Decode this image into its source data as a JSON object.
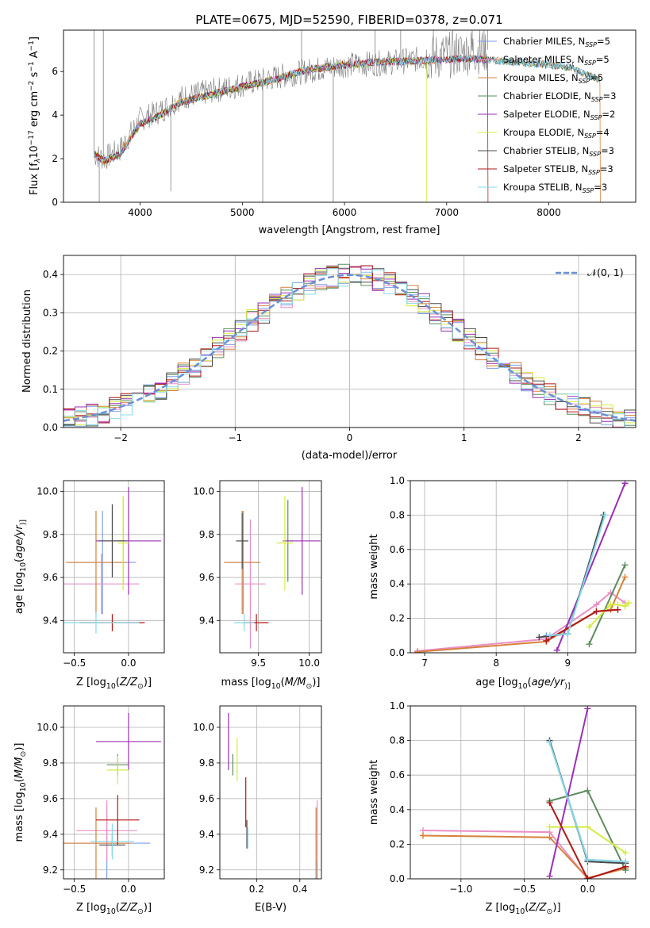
{
  "title": "PLATE=0675, MJD=52590, FIBERID=0378, z=0.071",
  "colors": {
    "Chabrier MILES": "#7d9fe8",
    "Salpeter MILES": "#e98fc6",
    "Kroupa MILES": "#d6813a",
    "Chabrier ELODIE": "#5d8c5d",
    "Salpeter ELODIE": "#9a2fb7",
    "Kroupa ELODIE": "#d4ec3e",
    "Chabrier STELIB": "#4a4a4a",
    "Salpeter STELIB": "#b01818",
    "Kroupa STELIB": "#86d9e8",
    "data": "#808080",
    "normal": "#6a8fd8"
  },
  "chart_data": [
    {
      "type": "line",
      "id": "spectrum",
      "title": "PLATE=0675, MJD=52590, FIBERID=0378, z=0.071",
      "xlabel": "wavelength [Angstrom, rest frame]",
      "ylabel_parts": [
        "Flux [f",
        "λ",
        "10",
        "−17",
        " erg cm",
        "−2",
        " s",
        "−1",
        " A",
        "−1",
        "]"
      ],
      "xlim": [
        3250,
        8850
      ],
      "ylim": [
        0,
        7.9
      ],
      "xticks": [
        4000,
        5000,
        6000,
        7000,
        8000
      ],
      "yticks": [
        0,
        2,
        4,
        6
      ],
      "legend_location": "right",
      "legend": [
        {
          "name": "Chabrier MILES",
          "n": "5"
        },
        {
          "name": "Salpeter MILES",
          "n": "5"
        },
        {
          "name": "Kroupa MILES",
          "n": "5"
        },
        {
          "name": "Chabrier ELODIE",
          "n": "3"
        },
        {
          "name": "Salpeter ELODIE",
          "n": "2"
        },
        {
          "name": "Kroupa ELODIE",
          "n": "4"
        },
        {
          "name": "Chabrier STELIB",
          "n": "3"
        },
        {
          "name": "Salpeter STELIB",
          "n": "3"
        },
        {
          "name": "Kroupa STELIB",
          "n": "3"
        }
      ],
      "model_trend": {
        "x": [
          3550,
          3650,
          3800,
          4000,
          4200,
          4400,
          4700,
          5000,
          5300,
          5600,
          6000,
          6400,
          6800,
          7200,
          7400,
          7600,
          7900,
          8200,
          8500
        ],
        "y": [
          2.2,
          1.9,
          2.2,
          3.6,
          4.0,
          4.6,
          4.95,
          5.3,
          5.6,
          6.05,
          6.3,
          6.45,
          6.5,
          6.6,
          6.55,
          6.45,
          6.35,
          6.2,
          5.6
        ]
      },
      "data_trend": {
        "x": [
          3550,
          3650,
          3800,
          4000,
          4200,
          4400,
          4700,
          5000,
          5300,
          5600,
          6000,
          6400,
          6800,
          7200,
          7400
        ],
        "y": [
          2.2,
          2.0,
          2.4,
          3.8,
          4.2,
          4.8,
          5.1,
          5.4,
          5.7,
          6.0,
          6.3,
          6.4,
          6.6,
          6.9,
          7.0
        ]
      }
    },
    {
      "type": "histogram",
      "id": "residuals",
      "xlabel": "(data-model)/error",
      "ylabel": "Normed distribution",
      "xlim": [
        -2.5,
        2.5
      ],
      "ylim": [
        0,
        0.45
      ],
      "xticks": [
        -2,
        -1,
        0,
        1,
        2
      ],
      "yticks": [
        0.0,
        0.1,
        0.2,
        0.3,
        0.4
      ],
      "legend_location": "top-right",
      "normal_label": "𝒩(0, 1)",
      "bin_width": 0.1,
      "grid": true
    },
    {
      "type": "scatter",
      "id": "age-vs-z",
      "xlabel_parts": [
        "Z [log",
        "10",
        "(",
        "Z/Z",
        "⊙",
        ")]"
      ],
      "ylabel_parts": [
        "age  [log",
        "10",
        "(",
        "age/yr",
        ")]"
      ],
      "xlim": [
        -0.6,
        0.33
      ],
      "ylim": [
        9.25,
        10.05
      ],
      "xticks": [
        -0.5,
        0.0
      ],
      "yticks": [
        9.4,
        9.6,
        9.8,
        10.0
      ],
      "points": [
        {
          "model": "Chabrier MILES",
          "x": -0.24,
          "xerr": 0.31,
          "y": 9.67,
          "yerr": 0.24
        },
        {
          "model": "Salpeter MILES",
          "x": -0.25,
          "xerr": 0.35,
          "y": 9.57,
          "yerr": 0.14
        },
        {
          "model": "Kroupa MILES",
          "x": -0.3,
          "xerr": 0.28,
          "y": 9.67,
          "yerr": 0.24
        },
        {
          "model": "Chabrier ELODIE",
          "x": -0.05,
          "xerr": 0.04,
          "y": 9.77,
          "yerr": 0.2
        },
        {
          "model": "Salpeter ELODIE",
          "x": 0.0,
          "xerr": 0.3,
          "y": 9.77,
          "yerr": 0.25
        },
        {
          "model": "Kroupa ELODIE",
          "x": -0.05,
          "xerr": 0.05,
          "y": 9.76,
          "yerr": 0.22
        },
        {
          "model": "Chabrier STELIB",
          "x": -0.15,
          "xerr": 0.12,
          "y": 9.77,
          "yerr": 0.17
        },
        {
          "model": "Salpeter STELIB",
          "x": -0.15,
          "xerr": 0.3,
          "y": 9.39,
          "yerr": 0.04
        },
        {
          "model": "Kroupa STELIB",
          "x": -0.3,
          "xerr": 0.4,
          "y": 9.39,
          "yerr": 0.05
        }
      ]
    },
    {
      "type": "scatter",
      "id": "age-vs-mass",
      "xlabel_parts": [
        "mass [log",
        "10",
        "(",
        "M/M",
        "⊙",
        ")]"
      ],
      "ylabel_parts": [],
      "xlim": [
        9.12,
        10.12
      ],
      "ylim": [
        9.25,
        10.05
      ],
      "xticks": [
        9.5,
        10.0
      ],
      "yticks": [
        9.4,
        9.6,
        9.8,
        10.0
      ],
      "points": [
        {
          "model": "Chabrier MILES",
          "x": 9.35,
          "xerr": 0.16,
          "y": 9.67,
          "yerr": 0.24
        },
        {
          "model": "Salpeter MILES",
          "x": 9.42,
          "xerr": 0.15,
          "y": 9.57,
          "yerr": 0.3
        },
        {
          "model": "Kroupa MILES",
          "x": 9.34,
          "xerr": 0.18,
          "y": 9.67,
          "yerr": 0.24
        },
        {
          "model": "Chabrier ELODIE",
          "x": 9.79,
          "xerr": 0.05,
          "y": 9.77,
          "yerr": 0.19
        },
        {
          "model": "Salpeter ELODIE",
          "x": 9.93,
          "xerr": 0.18,
          "y": 9.77,
          "yerr": 0.25
        },
        {
          "model": "Kroupa ELODIE",
          "x": 9.76,
          "xerr": 0.08,
          "y": 9.76,
          "yerr": 0.22
        },
        {
          "model": "Chabrier STELIB",
          "x": 9.34,
          "xerr": 0.06,
          "y": 9.77,
          "yerr": 0.13
        },
        {
          "model": "Salpeter STELIB",
          "x": 9.48,
          "xerr": 0.12,
          "y": 9.39,
          "yerr": 0.04
        },
        {
          "model": "Kroupa STELIB",
          "x": 9.36,
          "xerr": 0.1,
          "y": 9.39,
          "yerr": 0.04
        }
      ]
    },
    {
      "type": "line",
      "id": "weight-vs-age",
      "xlabel_parts": [
        "age  [log",
        "10",
        "(",
        "age/yr",
        ")]"
      ],
      "ylabel": "mass weight",
      "xlim": [
        6.8,
        9.95
      ],
      "ylim": [
        0,
        1.0
      ],
      "xticks": [
        7,
        8,
        9
      ],
      "yticks": [
        0.0,
        0.2,
        0.4,
        0.6,
        0.8,
        1.0
      ],
      "series": [
        {
          "model": "Chabrier MILES",
          "x": [
            8.7,
            9.0,
            9.5
          ],
          "y": [
            0.1,
            0.11,
            0.8
          ]
        },
        {
          "model": "Salpeter MILES",
          "x": [
            6.9,
            8.7,
            9.4,
            9.6,
            9.8
          ],
          "y": [
            0.01,
            0.08,
            0.28,
            0.35,
            0.29
          ]
        },
        {
          "model": "Kroupa MILES",
          "x": [
            6.9,
            8.7,
            9.4,
            9.6,
            9.8
          ],
          "y": [
            0.005,
            0.065,
            0.24,
            0.25,
            0.44
          ]
        },
        {
          "model": "Chabrier ELODIE",
          "x": [
            9.3,
            9.8
          ],
          "y": [
            0.05,
            0.51
          ]
        },
        {
          "model": "Salpeter ELODIE",
          "x": [
            8.85,
            9.8
          ],
          "y": [
            0.015,
            0.985
          ]
        },
        {
          "model": "Kroupa ELODIE",
          "x": [
            9.3,
            9.6,
            9.7,
            9.8,
            9.85
          ],
          "y": [
            0.15,
            0.28,
            0.28,
            0.27,
            0.29
          ]
        },
        {
          "model": "Chabrier STELIB",
          "x": [
            8.6,
            9.0,
            9.5
          ],
          "y": [
            0.09,
            0.11,
            0.8
          ]
        },
        {
          "model": "Salpeter STELIB",
          "x": [
            8.7,
            9.4,
            9.7
          ],
          "y": [
            0.07,
            0.24,
            0.25
          ]
        },
        {
          "model": "Kroupa STELIB",
          "x": [
            8.75,
            9.0,
            9.52
          ],
          "y": [
            0.1,
            0.11,
            0.8
          ]
        }
      ]
    },
    {
      "type": "scatter",
      "id": "mass-vs-z",
      "xlabel_parts": [
        "Z [log",
        "10",
        "(",
        "Z/Z",
        "⊙",
        ")]"
      ],
      "ylabel_parts": [
        "mass [log",
        "10",
        "(",
        "M/M",
        "⊙",
        ")]"
      ],
      "xlim": [
        -0.6,
        0.33
      ],
      "ylim": [
        9.15,
        10.12
      ],
      "xticks": [
        -0.5,
        0.0
      ],
      "yticks": [
        9.2,
        9.4,
        9.6,
        9.8,
        10.0
      ],
      "points": [
        {
          "model": "Chabrier MILES",
          "x": -0.2,
          "xerr": 0.4,
          "y": 9.35,
          "yerr": 0.2
        },
        {
          "model": "Salpeter MILES",
          "x": -0.2,
          "xerr": 0.28,
          "y": 9.42,
          "yerr": 0.17
        },
        {
          "model": "Kroupa MILES",
          "x": -0.3,
          "xerr": 0.32,
          "y": 9.35,
          "yerr": 0.2
        },
        {
          "model": "Chabrier ELODIE",
          "x": -0.1,
          "xerr": 0.1,
          "y": 9.79,
          "yerr": 0.06
        },
        {
          "model": "Salpeter ELODIE",
          "x": 0.0,
          "xerr": 0.3,
          "y": 9.92,
          "yerr": 0.16
        },
        {
          "model": "Kroupa ELODIE",
          "x": -0.1,
          "xerr": 0.1,
          "y": 9.76,
          "yerr": 0.08
        },
        {
          "model": "Chabrier STELIB",
          "x": -0.15,
          "xerr": 0.12,
          "y": 9.34,
          "yerr": 0.06
        },
        {
          "model": "Salpeter STELIB",
          "x": -0.1,
          "xerr": 0.2,
          "y": 9.48,
          "yerr": 0.14
        },
        {
          "model": "Kroupa STELIB",
          "x": -0.15,
          "xerr": 0.2,
          "y": 9.36,
          "yerr": 0.1
        }
      ]
    },
    {
      "type": "scatter",
      "id": "mass-vs-ebv",
      "xlabel": "E(B-V)",
      "ylabel_parts": [],
      "xlim": [
        0.03,
        0.5
      ],
      "ylim": [
        9.15,
        10.12
      ],
      "xticks": [
        0.2,
        0.4
      ],
      "yticks": [
        9.2,
        9.4,
        9.6,
        9.8,
        10.0
      ],
      "points": [
        {
          "model": "Chabrier MILES",
          "x": 0.48,
          "xerr": 0,
          "y": 9.35,
          "yerr": 0.2
        },
        {
          "model": "Salpeter MILES",
          "x": 0.48,
          "xerr": 0,
          "y": 9.42,
          "yerr": 0.17
        },
        {
          "model": "Kroupa MILES",
          "x": 0.475,
          "xerr": 0,
          "y": 9.35,
          "yerr": 0.2
        },
        {
          "model": "Chabrier ELODIE",
          "x": 0.09,
          "xerr": 0,
          "y": 9.79,
          "yerr": 0.06
        },
        {
          "model": "Salpeter ELODIE",
          "x": 0.07,
          "xerr": 0,
          "y": 9.92,
          "yerr": 0.16
        },
        {
          "model": "Kroupa ELODIE",
          "x": 0.11,
          "xerr": 0,
          "y": 9.82,
          "yerr": 0.12
        },
        {
          "model": "Chabrier STELIB",
          "x": 0.155,
          "xerr": 0,
          "y": 9.4,
          "yerr": 0.08
        },
        {
          "model": "Salpeter STELIB",
          "x": 0.15,
          "xerr": 0,
          "y": 9.58,
          "yerr": 0.14
        },
        {
          "model": "Kroupa STELIB",
          "x": 0.16,
          "xerr": 0,
          "y": 9.38,
          "yerr": 0.06
        }
      ]
    },
    {
      "type": "line",
      "id": "weight-vs-z",
      "xlabel_parts": [
        "Z [log",
        "10",
        "(",
        "Z/Z",
        "⊙",
        ")]"
      ],
      "ylabel": "mass weight",
      "xlim": [
        -1.4,
        0.38
      ],
      "ylim": [
        0,
        1.0
      ],
      "xticks": [
        -1.0,
        -0.5,
        0.0
      ],
      "yticks": [
        0.0,
        0.2,
        0.4,
        0.6,
        0.8,
        1.0
      ],
      "tick_labels_x": [
        "−1.0",
        "−0.5",
        "0.0"
      ],
      "series": [
        {
          "model": "Chabrier MILES",
          "x": [
            -0.3,
            0.0,
            0.3
          ],
          "y": [
            0.8,
            0.11,
            0.1
          ]
        },
        {
          "model": "Salpeter MILES",
          "x": [
            -1.3,
            -0.3,
            0.0,
            0.3
          ],
          "y": [
            0.28,
            0.27,
            0.0,
            0.07
          ]
        },
        {
          "model": "Kroupa MILES",
          "x": [
            -1.3,
            -0.3,
            0.0,
            0.3
          ],
          "y": [
            0.25,
            0.24,
            0.005,
            0.06
          ]
        },
        {
          "model": "Chabrier ELODIE",
          "x": [
            -0.3,
            0.0,
            0.3
          ],
          "y": [
            0.45,
            0.51,
            0.05
          ]
        },
        {
          "model": "Salpeter ELODIE",
          "x": [
            -0.3,
            0.0
          ],
          "y": [
            0.015,
            0.985
          ]
        },
        {
          "model": "Kroupa ELODIE",
          "x": [
            -0.3,
            0.0,
            0.3
          ],
          "y": [
            0.3,
            0.3,
            0.15
          ]
        },
        {
          "model": "Chabrier STELIB",
          "x": [
            -0.3,
            0.0,
            0.3
          ],
          "y": [
            0.8,
            0.1,
            0.09
          ]
        },
        {
          "model": "Salpeter STELIB",
          "x": [
            -0.3,
            0.0,
            0.3
          ],
          "y": [
            0.44,
            0.0,
            0.07
          ]
        },
        {
          "model": "Kroupa STELIB",
          "x": [
            -0.3,
            0.0,
            0.3
          ],
          "y": [
            0.79,
            0.11,
            0.1
          ]
        }
      ]
    }
  ]
}
